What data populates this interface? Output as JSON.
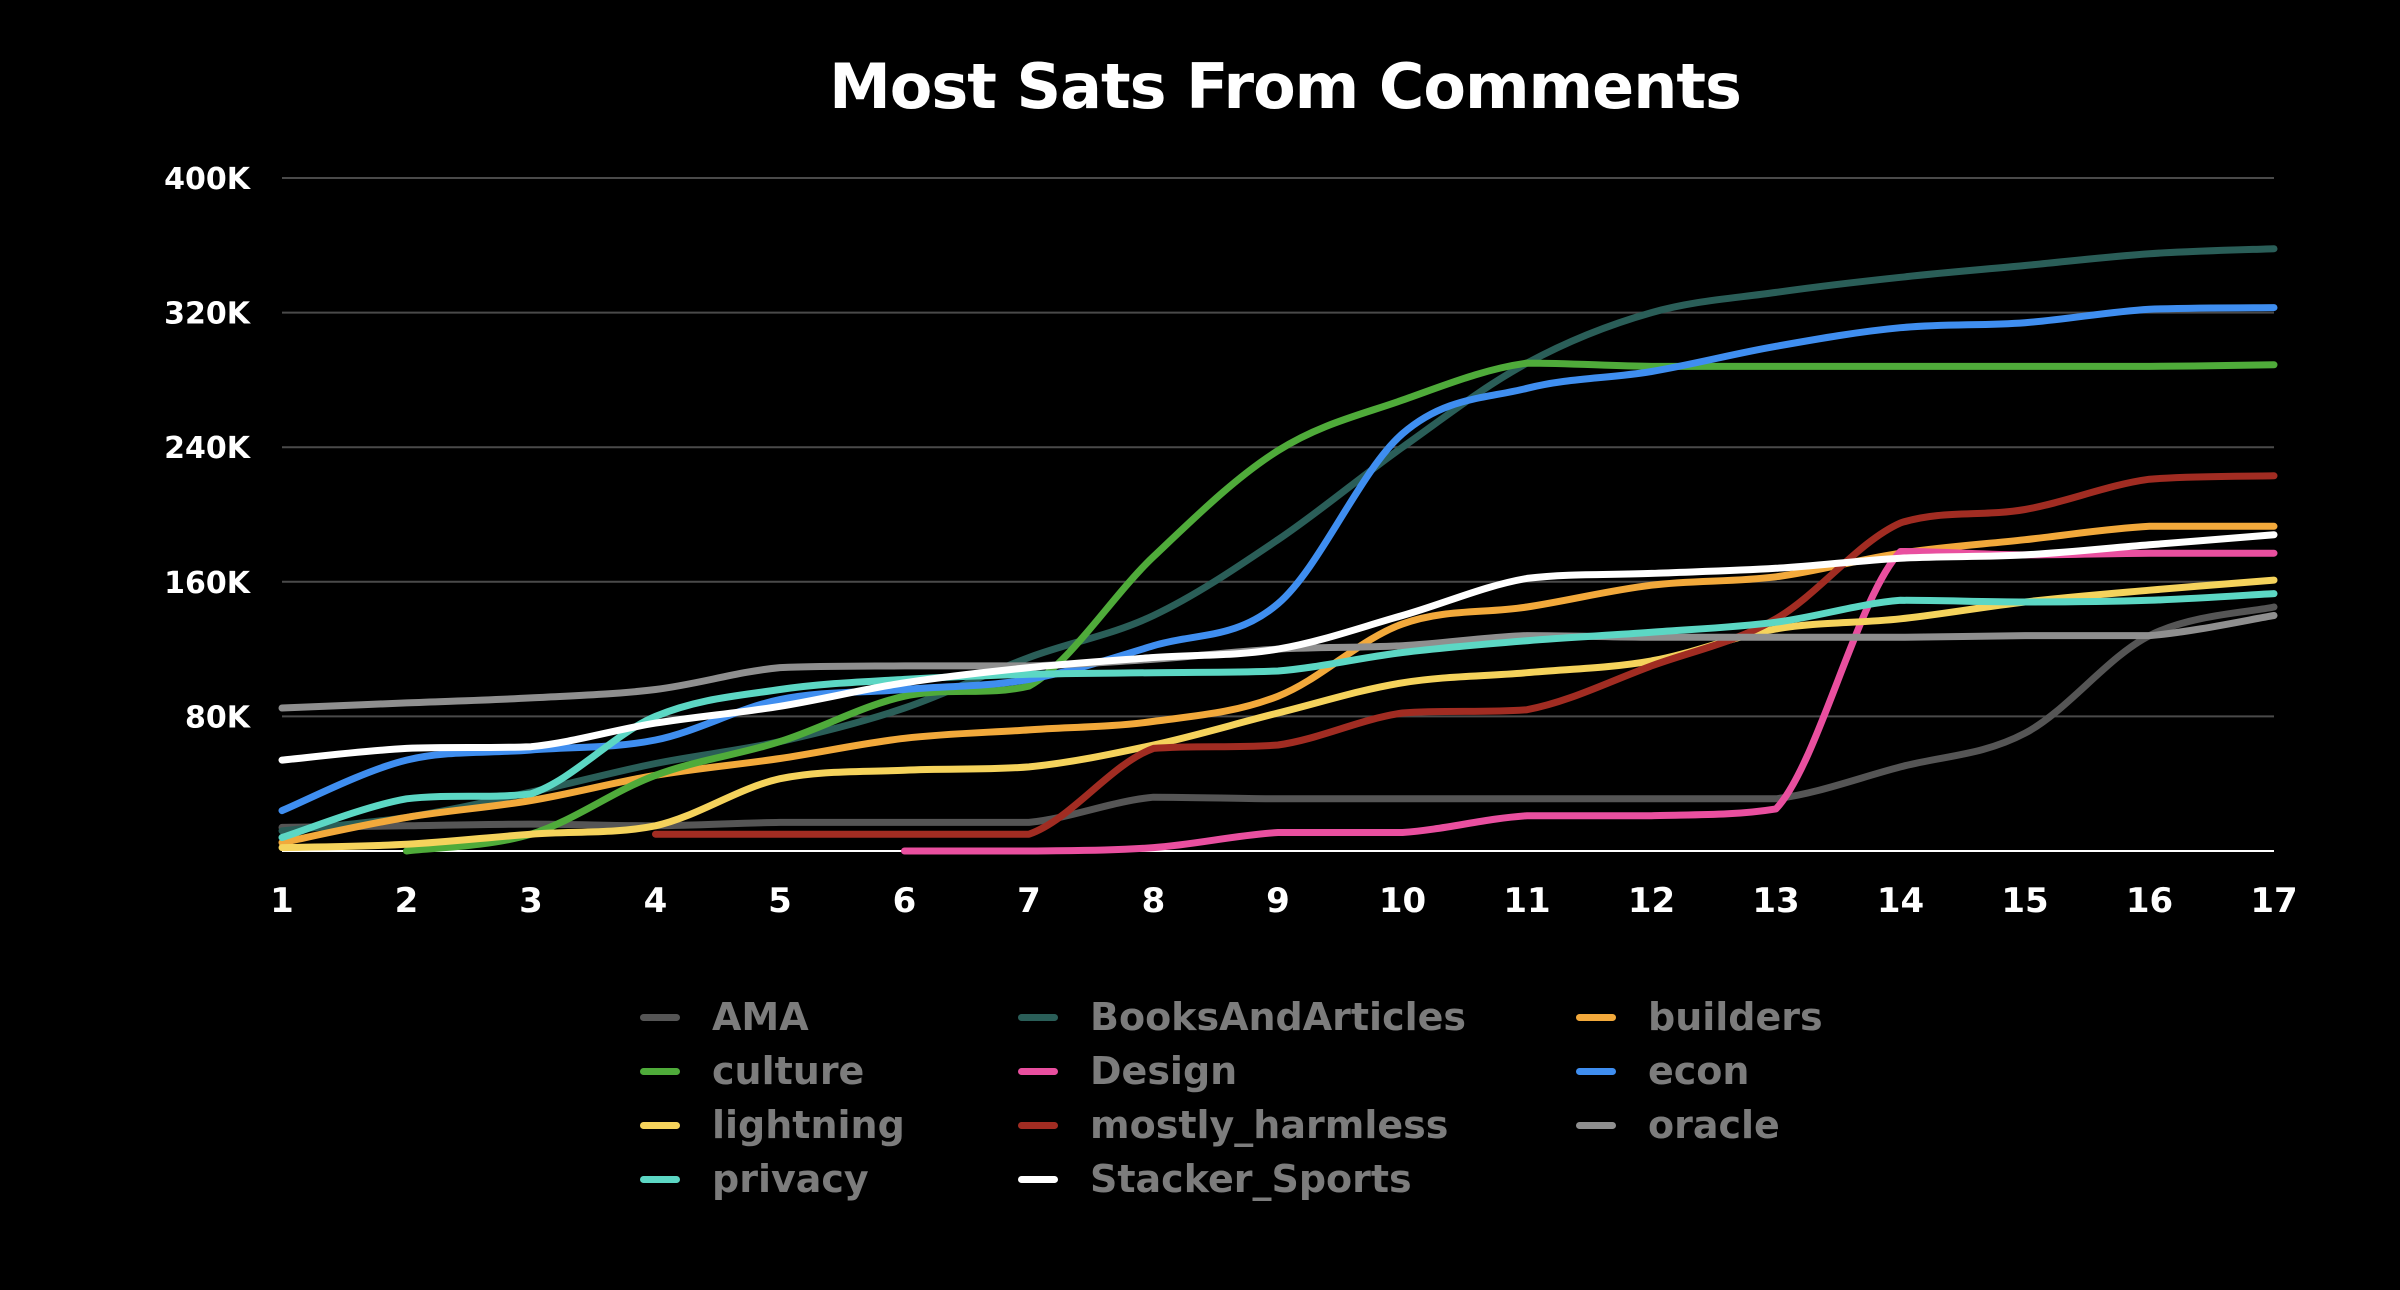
{
  "chart_data": {
    "type": "line",
    "title": "Most Sats From Comments",
    "xlabel": "",
    "ylabel": "",
    "x": [
      1,
      2,
      3,
      4,
      5,
      6,
      7,
      8,
      9,
      10,
      11,
      12,
      13,
      14,
      15,
      16,
      17
    ],
    "ylim": [
      0,
      400000
    ],
    "yticks": [
      80000,
      160000,
      240000,
      320000,
      400000
    ],
    "ytick_labels": [
      "80K",
      "160K",
      "240K",
      "320K",
      "400K"
    ],
    "xtick_labels": [
      "1",
      "2",
      "3",
      "4",
      "5",
      "6",
      "7",
      "8",
      "9",
      "10",
      "11",
      "12",
      "13",
      "14",
      "15",
      "16",
      "17"
    ],
    "grid": true,
    "legend_placement": "bottom",
    "series": [
      {
        "name": "AMA",
        "color": "#555555",
        "values": [
          14000,
          15000,
          16000,
          15000,
          17000,
          17000,
          17000,
          32000,
          31000,
          31000,
          31000,
          31000,
          31000,
          50000,
          70000,
          128000,
          145000
        ]
      },
      {
        "name": "BooksAndArticles",
        "color": "#2a5e58",
        "values": [
          12000,
          20000,
          35000,
          52000,
          65000,
          85000,
          115000,
          140000,
          185000,
          240000,
          290000,
          320000,
          332000,
          341000,
          348000,
          355000,
          358000
        ]
      },
      {
        "name": "builders",
        "color": "#f2a93b",
        "values": [
          5000,
          20000,
          30000,
          45000,
          55000,
          67000,
          72000,
          77000,
          92000,
          135000,
          145000,
          158000,
          163000,
          177000,
          185000,
          193000,
          193000
        ]
      },
      {
        "name": "culture",
        "color": "#4fab3a",
        "values": [
          null,
          0,
          10000,
          45000,
          65000,
          92000,
          98000,
          175000,
          238000,
          268000,
          290000,
          288000,
          288000,
          288000,
          288000,
          288000,
          289000
        ]
      },
      {
        "name": "Design",
        "color": "#e94f9f",
        "values": [
          null,
          null,
          null,
          null,
          null,
          0,
          0,
          2000,
          11000,
          11000,
          21000,
          21000,
          25000,
          178000,
          176000,
          177000,
          177000
        ]
      },
      {
        "name": "econ",
        "color": "#3f8ef0",
        "values": [
          24000,
          54000,
          60000,
          66000,
          90000,
          96000,
          102000,
          122000,
          147000,
          248000,
          275000,
          285000,
          300000,
          311000,
          314000,
          322000,
          323000
        ]
      },
      {
        "name": "lightning",
        "color": "#f5d35c",
        "values": [
          2000,
          4000,
          10000,
          15000,
          43000,
          48000,
          50000,
          63000,
          82000,
          100000,
          106000,
          113000,
          132000,
          138000,
          148000,
          155000,
          161000
        ]
      },
      {
        "name": "mostly_harmless",
        "color": "#a12c22",
        "values": [
          null,
          null,
          null,
          10000,
          10000,
          10000,
          10000,
          61000,
          63000,
          82000,
          84000,
          110000,
          138000,
          195000,
          203000,
          221000,
          223000
        ]
      },
      {
        "name": "oracle",
        "color": "#8f8f8f",
        "values": [
          85000,
          88000,
          91000,
          96000,
          109000,
          110000,
          110000,
          114000,
          120000,
          122000,
          128000,
          127000,
          127000,
          127000,
          128000,
          128000,
          140000
        ]
      },
      {
        "name": "privacy",
        "color": "#5cd7c4",
        "values": [
          8000,
          31000,
          34000,
          80000,
          96000,
          102000,
          105000,
          106000,
          107000,
          118000,
          125000,
          130000,
          136000,
          149000,
          148000,
          149000,
          153000
        ]
      },
      {
        "name": "Stacker_Sports",
        "color": "#ffffff",
        "values": [
          54000,
          61000,
          62000,
          76000,
          86000,
          100000,
          109000,
          115000,
          120000,
          140000,
          162000,
          165000,
          168000,
          174000,
          176000,
          182000,
          188000
        ]
      }
    ]
  }
}
